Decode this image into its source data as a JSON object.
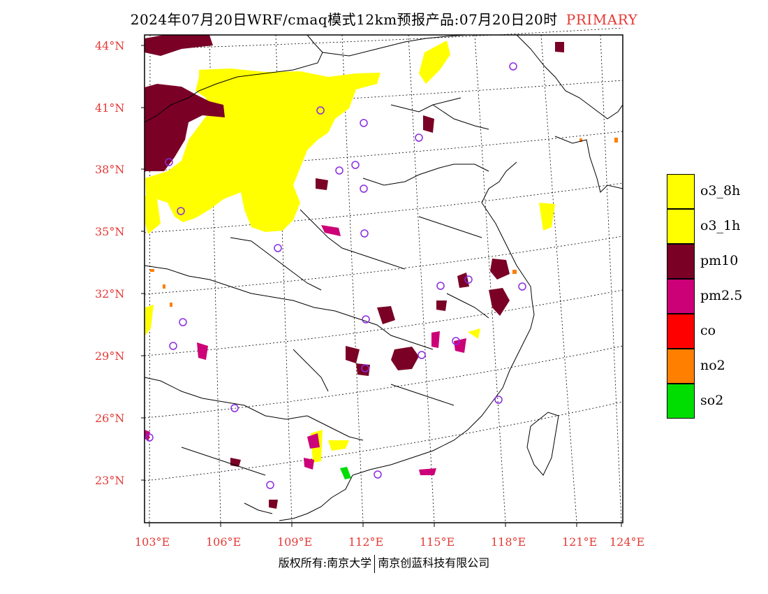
{
  "title": {
    "main": "2024年07月20日WRF/cmaq模式12km预报产品:07月20日20时",
    "tag": "PRIMARY"
  },
  "axes": {
    "lat_labels": [
      "44°N",
      "41°N",
      "38°N",
      "35°N",
      "32°N",
      "29°N",
      "26°N",
      "23°N"
    ],
    "lon_labels": [
      "103°E",
      "106°E",
      "109°E",
      "112°E",
      "115°E",
      "118°E",
      "121°E",
      "124°E"
    ],
    "label_color": "#e53935"
  },
  "legend": {
    "items": [
      {
        "label": "o3_8h",
        "color": "#ffff00"
      },
      {
        "label": "o3_1h",
        "color": "#ffff00"
      },
      {
        "label": "pm10",
        "color": "#7a0026"
      },
      {
        "label": "pm2.5",
        "color": "#cc0077"
      },
      {
        "label": "co",
        "color": "#ff0000"
      },
      {
        "label": "no2",
        "color": "#ff7f00"
      },
      {
        "label": "so2",
        "color": "#00dd00"
      }
    ]
  },
  "copyright": {
    "left": "版权所有:南京大学",
    "right": "南京创蓝科技有限公司"
  },
  "colors": {
    "o3": "#ffff00",
    "pm10": "#7a0026",
    "pm25": "#cc0077",
    "no2": "#ff7f00",
    "so2": "#00dd00",
    "station": "#8a2be2"
  }
}
